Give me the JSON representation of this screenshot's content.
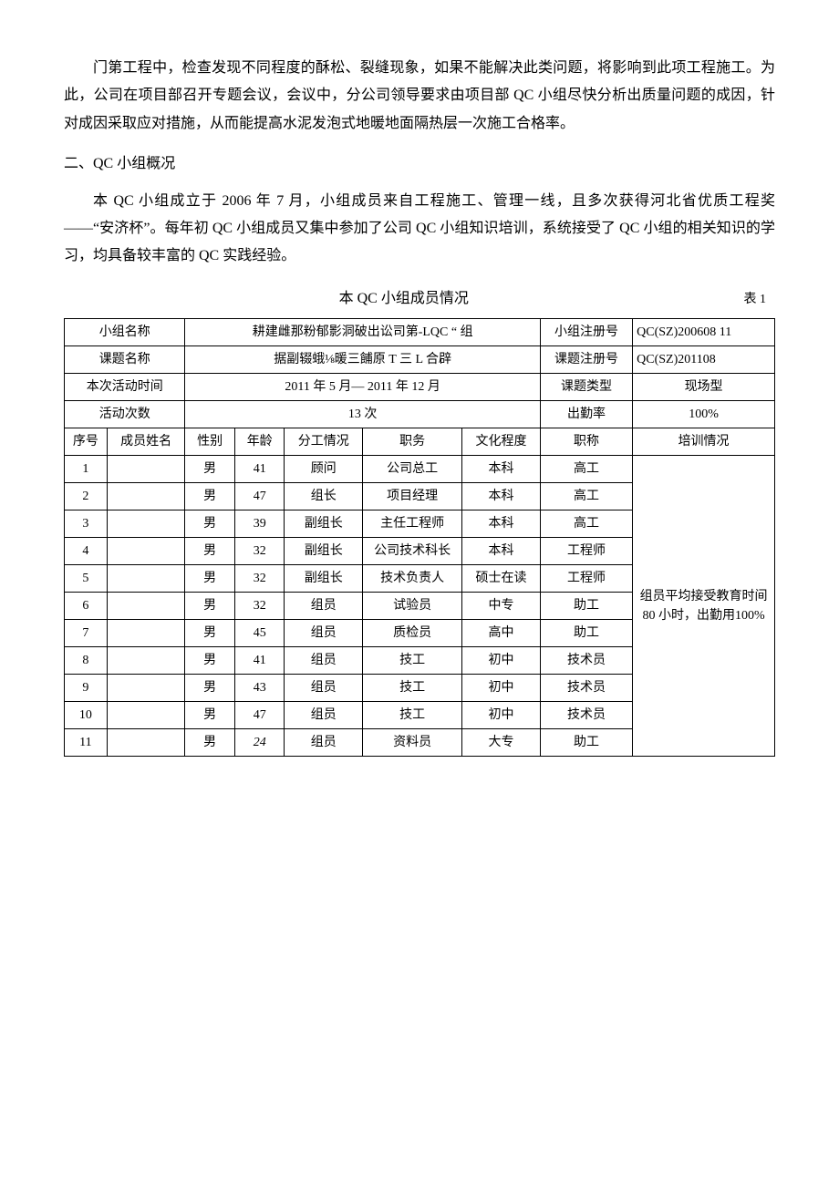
{
  "para1": "门第工程中，检查发现不同程度的酥松、裂缝现象，如果不能解决此类问题，将影响到此项工程施工。为此，公司在项目部召开专题会议，会议中，分公司领导要求由项目部 QC 小组尽快分析出质量问题的成因，针对成因采取应对措施，从而能提高水泥发泡式地暖地面隔热层一次施工合格率。",
  "heading2": "二、QC 小组概况",
  "para2": "本 QC 小组成立于 2006 年 7 月，小组成员来自工程施工、管理一线，且多次获得河北省优质工程奖——“安济杯”。每年初 QC 小组成员又集中参加了公司 QC 小组知识培训，系统接受了 QC 小组的相关知识的学习，均具备较丰富的 QC 实践经验。",
  "table_title": "本 QC 小组成员情况",
  "table_no": "表 1",
  "hdr": {
    "group_name_lbl": "小组名称",
    "group_name_val": "耕建雌那粉郁影洞破出讼司第-LQC “ 组",
    "group_reg_lbl": "小组注册号",
    "group_reg_val": "QC(SZ)200608 11",
    "topic_name_lbl": "课题名称",
    "topic_name_val": "据副辍蛾⅛暖三餔原 T 三 L 合辟",
    "topic_reg_lbl": "课题注册号",
    "topic_reg_val": "QC(SZ)201108",
    "act_time_lbl": "本次活动时间",
    "act_time_val": "2011 年 5 月— 2011 年 12 月",
    "topic_type_lbl": "课题类型",
    "topic_type_val": "现场型",
    "act_count_lbl": "活动次数",
    "act_count_val": "13 次",
    "attend_lbl": "出勤率",
    "attend_val": "100%"
  },
  "cols": {
    "c1": "序号",
    "c2": "成员姓名",
    "c3": "性别",
    "c4": "年龄",
    "c5": "分工情况",
    "c6": "职务",
    "c7": "文化程度",
    "c8": "职称",
    "c9": "培训情况"
  },
  "training_note": "组员平均接受教育时间 80 小时，出勤用100%",
  "rows": [
    {
      "n": "1",
      "name": "",
      "sex": "男",
      "age": "41",
      "role": "顾问",
      "duty": "公司总工",
      "edu": "本科",
      "title": "高工"
    },
    {
      "n": "2",
      "name": "",
      "sex": "男",
      "age": "47",
      "role": "组长",
      "duty": "项目经理",
      "edu": "本科",
      "title": "高工"
    },
    {
      "n": "3",
      "name": "",
      "sex": "男",
      "age": "39",
      "role": "副组长",
      "duty": "主任工程师",
      "edu": "本科",
      "title": "高工"
    },
    {
      "n": "4",
      "name": "",
      "sex": "男",
      "age": "32",
      "role": "副组长",
      "duty": "公司技术科长",
      "edu": "本科",
      "title": "工程师"
    },
    {
      "n": "5",
      "name": "",
      "sex": "男",
      "age": "32",
      "role": "副组长",
      "duty": "技术负责人",
      "edu": "硕士在读",
      "title": "工程师"
    },
    {
      "n": "6",
      "name": "",
      "sex": "男",
      "age": "32",
      "role": "组员",
      "duty": "试验员",
      "edu": "中专",
      "title": "助工"
    },
    {
      "n": "7",
      "name": "",
      "sex": "男",
      "age": "45",
      "role": "组员",
      "duty": "质检员",
      "edu": "高中",
      "title": "助工"
    },
    {
      "n": "8",
      "name": "",
      "sex": "男",
      "age": "41",
      "role": "组员",
      "duty": "技工",
      "edu": "初中",
      "title": "技术员"
    },
    {
      "n": "9",
      "name": "",
      "sex": "男",
      "age": "43",
      "role": "组员",
      "duty": "技工",
      "edu": "初中",
      "title": "技术员"
    },
    {
      "n": "10",
      "name": "",
      "sex": "男",
      "age": "47",
      "role": "组员",
      "duty": "技工",
      "edu": "初中",
      "title": "技术员"
    },
    {
      "n": "11",
      "name": "",
      "sex": "男",
      "age": "24",
      "role": "组员",
      "duty": "资料员",
      "edu": "大专",
      "title": "助工",
      "italic_age": true
    }
  ]
}
